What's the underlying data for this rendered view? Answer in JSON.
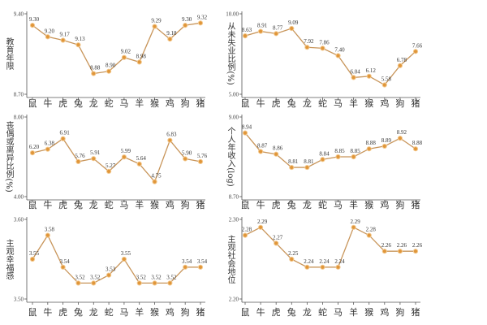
{
  "colors": {
    "line": "#c8955a",
    "marker": "#e0963a",
    "axis": "#555555"
  },
  "chart_data": [
    {
      "type": "line",
      "ylabel": "教育年限",
      "ylim": [
        8.7,
        9.4
      ],
      "yticks": [
        "9.40",
        "8.70"
      ],
      "categories": [
        "鼠",
        "牛",
        "虎",
        "兔",
        "龙",
        "蛇",
        "马",
        "羊",
        "猴",
        "鸡",
        "狗",
        "猪"
      ],
      "values": [
        9.3,
        9.2,
        9.17,
        9.13,
        8.88,
        8.9,
        9.02,
        8.98,
        9.29,
        9.18,
        9.3,
        9.32
      ],
      "labels": [
        "9.30",
        "9.20",
        "9.17",
        "9.13",
        "8.88",
        "8.90",
        "9.02",
        "8.98",
        "9.29",
        "9.18",
        "9.30",
        "9.32"
      ]
    },
    {
      "type": "line",
      "ylabel": "从未失业比例(%)",
      "ylim": [
        5.0,
        10.0
      ],
      "yticks": [
        "10.00",
        "5.00"
      ],
      "categories": [
        "鼠",
        "牛",
        "虎",
        "兔",
        "龙",
        "蛇",
        "马",
        "羊",
        "猴",
        "鸡",
        "狗",
        "猪"
      ],
      "values": [
        8.63,
        8.91,
        8.77,
        9.09,
        7.92,
        7.86,
        7.4,
        6.04,
        6.12,
        5.58,
        6.78,
        7.66
      ],
      "labels": [
        "8.63",
        "8.91",
        "8.77",
        "9.09",
        "7.92",
        "7.86",
        "7.40",
        "6.04",
        "6.12",
        "5.58",
        "6.78",
        "7.66"
      ]
    },
    {
      "type": "line",
      "ylabel": "丧偶或离异比例(%)",
      "ylim": [
        4.0,
        8.0
      ],
      "yticks": [
        "8.00",
        "4.00"
      ],
      "categories": [
        "鼠",
        "牛",
        "虎",
        "兔",
        "龙",
        "蛇",
        "马",
        "羊",
        "猴",
        "鸡",
        "狗",
        "猪"
      ],
      "values": [
        6.2,
        6.38,
        6.91,
        5.76,
        5.91,
        5.27,
        5.99,
        5.64,
        4.75,
        6.83,
        5.9,
        5.76
      ],
      "labels": [
        "6.20",
        "6.38",
        "6.91",
        "5.76",
        "5.91",
        "5.27",
        "5.99",
        "5.64",
        "4.75",
        "6.83",
        "5.90",
        "5.76"
      ]
    },
    {
      "type": "line",
      "ylabel": "个人年收入(log)",
      "ylim": [
        8.7,
        9.0
      ],
      "yticks": [
        "9.00",
        "8.70"
      ],
      "categories": [
        "鼠",
        "牛",
        "虎",
        "兔",
        "龙",
        "蛇",
        "马",
        "羊",
        "猴",
        "鸡",
        "狗",
        "猪"
      ],
      "values": [
        8.94,
        8.87,
        8.86,
        8.81,
        8.81,
        8.84,
        8.85,
        8.85,
        8.88,
        8.89,
        8.92,
        8.88
      ],
      "labels": [
        "8.94",
        "8.87",
        "8.86",
        "8.81",
        "8.81",
        "8.84",
        "8.85",
        "8.85",
        "8.88",
        "8.89",
        "8.92",
        "8.88"
      ]
    },
    {
      "type": "line",
      "ylabel": "主观幸福感",
      "ylim": [
        3.5,
        3.6
      ],
      "yticks": [
        "3.60",
        "3.50"
      ],
      "categories": [
        "鼠",
        "牛",
        "虎",
        "兔",
        "龙",
        "蛇",
        "马",
        "羊",
        "猴",
        "鸡",
        "狗",
        "猪"
      ],
      "values": [
        3.55,
        3.58,
        3.54,
        3.52,
        3.52,
        3.53,
        3.55,
        3.52,
        3.52,
        3.52,
        3.54,
        3.54
      ],
      "labels": [
        "3.55",
        "3.58",
        "3.54",
        "3.52",
        "3.52",
        "3.53",
        "3.55",
        "3.52",
        "3.52",
        "3.52",
        "3.54",
        "3.54"
      ]
    },
    {
      "type": "line",
      "ylabel": "主观社会地位",
      "ylim": [
        2.2,
        2.3
      ],
      "yticks": [
        "2.30",
        "2.20"
      ],
      "categories": [
        "鼠",
        "牛",
        "虎",
        "兔",
        "龙",
        "蛇",
        "马",
        "羊",
        "猴",
        "鸡",
        "狗",
        "猪"
      ],
      "values": [
        2.28,
        2.29,
        2.27,
        2.25,
        2.24,
        2.24,
        2.24,
        2.29,
        2.28,
        2.26,
        2.26,
        2.26
      ],
      "labels": [
        "2.28",
        "2.29",
        "2.27",
        "2.25",
        "2.24",
        "2.24",
        "2.24",
        "2.29",
        "2.28",
        "2.26",
        "2.26",
        "2.26"
      ]
    }
  ]
}
